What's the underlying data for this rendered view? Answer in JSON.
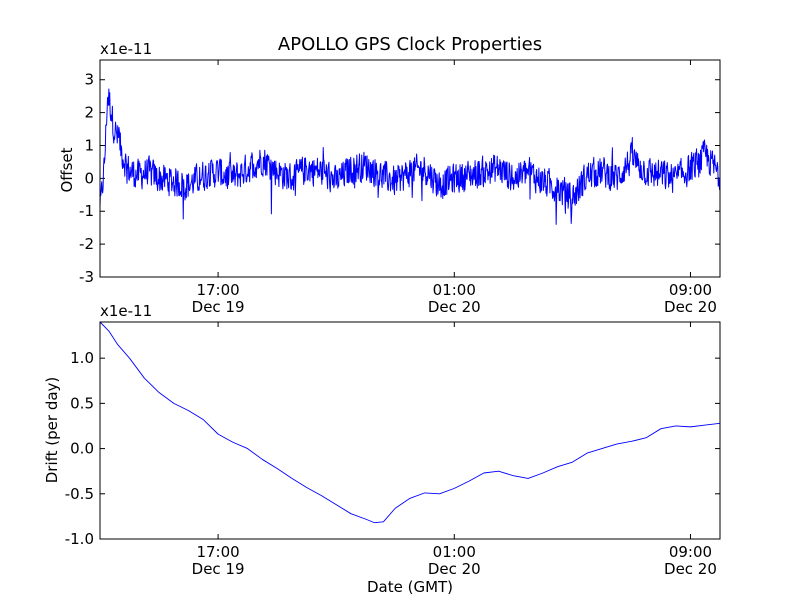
{
  "chart_data": [
    {
      "type": "line",
      "title": "APOLLO GPS Clock Properties",
      "xlabel": "",
      "ylabel": "Offset",
      "y_multiplier_label": "x1e-11",
      "ylim": [
        -3,
        3.6
      ],
      "y_ticks": [
        -3,
        -2,
        -1,
        0,
        1,
        2,
        3
      ],
      "y_tick_labels": [
        "-3",
        "-2",
        "-1",
        "0",
        "1",
        "2",
        "3"
      ],
      "x_hours_range": [
        0,
        21
      ],
      "x_ticks": [
        {
          "hour": 4,
          "time": "17:00",
          "date": "Dec 19"
        },
        {
          "hour": 12,
          "time": "01:00",
          "date": "Dec 20"
        },
        {
          "hour": 20,
          "time": "09:00",
          "date": "Dec 20"
        }
      ],
      "grid": false,
      "line_color": "#0000ff",
      "series": [
        {
          "description": "noisy offset signal (approximate envelope)",
          "x": [
            0.0,
            0.15,
            0.25,
            0.35,
            0.45,
            0.6,
            0.8,
            1.0,
            1.3,
            1.6,
            2.0,
            2.5,
            3.0,
            3.5,
            4.0,
            4.5,
            5.0,
            5.5,
            6.0,
            6.5,
            7.0,
            7.5,
            8.0,
            8.5,
            9.0,
            9.5,
            10.0,
            10.5,
            11.0,
            11.5,
            12.0,
            12.5,
            13.0,
            13.5,
            14.0,
            14.5,
            15.0,
            15.5,
            16.0,
            16.5,
            17.0,
            17.5,
            18.0,
            18.5,
            19.0,
            19.5,
            20.0,
            20.5,
            21.0
          ],
          "y": [
            -1.0,
            0.5,
            2.6,
            2.2,
            1.6,
            1.2,
            0.6,
            0.2,
            0.1,
            0.2,
            0.0,
            -0.1,
            -0.2,
            0.1,
            0.2,
            0.0,
            0.3,
            0.6,
            0.2,
            0.0,
            0.3,
            0.2,
            -0.1,
            0.3,
            0.4,
            0.1,
            -0.1,
            0.2,
            0.3,
            -0.2,
            0.0,
            0.1,
            0.2,
            0.3,
            0.0,
            0.2,
            -0.1,
            -0.3,
            -0.6,
            0.1,
            0.2,
            0.0,
            0.6,
            0.2,
            0.1,
            0.0,
            0.3,
            0.7,
            0.1
          ]
        }
      ]
    },
    {
      "type": "line",
      "title": "",
      "xlabel": "Date (GMT)",
      "ylabel": "Drift (per day)",
      "y_multiplier_label": "x1e-11",
      "ylim": [
        -1.0,
        1.4
      ],
      "y_ticks": [
        -1.0,
        -0.5,
        0.0,
        0.5,
        1.0
      ],
      "y_tick_labels": [
        "-1.0",
        "-0.5",
        "0.0",
        "0.5",
        "1.0"
      ],
      "x_hours_range": [
        0,
        21
      ],
      "x_ticks": [
        {
          "hour": 4,
          "time": "17:00",
          "date": "Dec 19"
        },
        {
          "hour": 12,
          "time": "01:00",
          "date": "Dec 20"
        },
        {
          "hour": 20,
          "time": "09:00",
          "date": "Dec 20"
        }
      ],
      "grid": false,
      "line_color": "#0000ff",
      "series": [
        {
          "description": "clock drift",
          "x": [
            0.0,
            0.3,
            0.6,
            1.0,
            1.5,
            2.0,
            2.5,
            3.0,
            3.5,
            4.0,
            4.5,
            5.0,
            5.5,
            6.0,
            6.5,
            7.0,
            7.5,
            8.0,
            8.5,
            9.0,
            9.3,
            9.6,
            10.0,
            10.5,
            11.0,
            11.5,
            12.0,
            12.5,
            13.0,
            13.5,
            14.0,
            14.5,
            15.0,
            15.5,
            16.0,
            16.5,
            17.0,
            17.5,
            18.0,
            18.5,
            19.0,
            19.5,
            20.0,
            20.5,
            21.0
          ],
          "y": [
            1.4,
            1.3,
            1.15,
            1.0,
            0.78,
            0.62,
            0.5,
            0.42,
            0.32,
            0.16,
            0.07,
            0.0,
            -0.12,
            -0.22,
            -0.33,
            -0.43,
            -0.52,
            -0.62,
            -0.72,
            -0.78,
            -0.82,
            -0.81,
            -0.66,
            -0.55,
            -0.49,
            -0.5,
            -0.44,
            -0.36,
            -0.27,
            -0.25,
            -0.3,
            -0.33,
            -0.27,
            -0.2,
            -0.15,
            -0.05,
            0.0,
            0.05,
            0.08,
            0.12,
            0.22,
            0.25,
            0.24,
            0.26,
            0.28
          ]
        }
      ]
    }
  ]
}
